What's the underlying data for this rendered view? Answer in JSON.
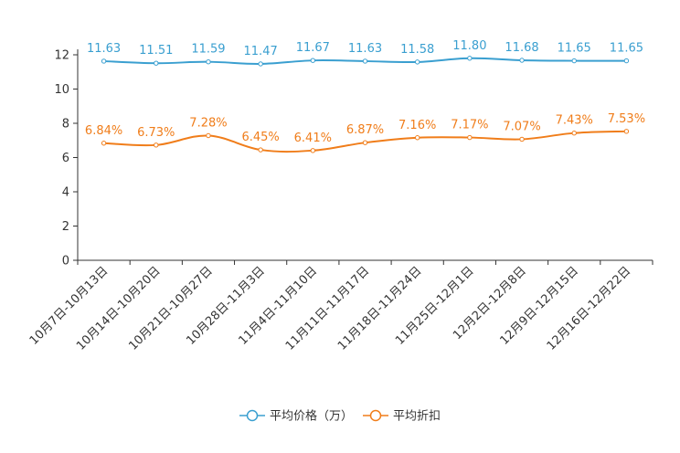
{
  "chart_data": {
    "type": "line",
    "categories": [
      "10月7日-10月13日",
      "10月14日-10月20日",
      "10月21日-10月27日",
      "10月28日-11月3日",
      "11月4日-11月10日",
      "11月11日-11月17日",
      "11月18日-11月24日",
      "11月25日-12月1日",
      "12月2日-12月8日",
      "12月9日-12月15日",
      "12月16日-12月22日"
    ],
    "series": [
      {
        "name": "平均价格（万）",
        "color": "#3a9fd0",
        "values": [
          11.63,
          11.51,
          11.59,
          11.47,
          11.67,
          11.63,
          11.58,
          11.8,
          11.68,
          11.65,
          11.65
        ],
        "labels": [
          "11.63",
          "11.51",
          "11.59",
          "11.47",
          "11.67",
          "11.63",
          "11.58",
          "11.80",
          "11.68",
          "11.65",
          "11.65"
        ]
      },
      {
        "name": "平均折扣",
        "color": "#f07d1a",
        "values": [
          6.84,
          6.73,
          7.28,
          6.45,
          6.41,
          6.87,
          7.16,
          7.17,
          7.07,
          7.43,
          7.53
        ],
        "labels": [
          "6.84%",
          "6.73%",
          "7.28%",
          "6.45%",
          "6.41%",
          "6.87%",
          "7.16%",
          "7.17%",
          "7.07%",
          "7.43%",
          "7.53%"
        ]
      }
    ],
    "yticks": [
      "0",
      "2",
      "4",
      "6",
      "8",
      "10",
      "12"
    ],
    "ylim": [
      0,
      12
    ],
    "grid": false,
    "legend_position": "bottom-center"
  }
}
